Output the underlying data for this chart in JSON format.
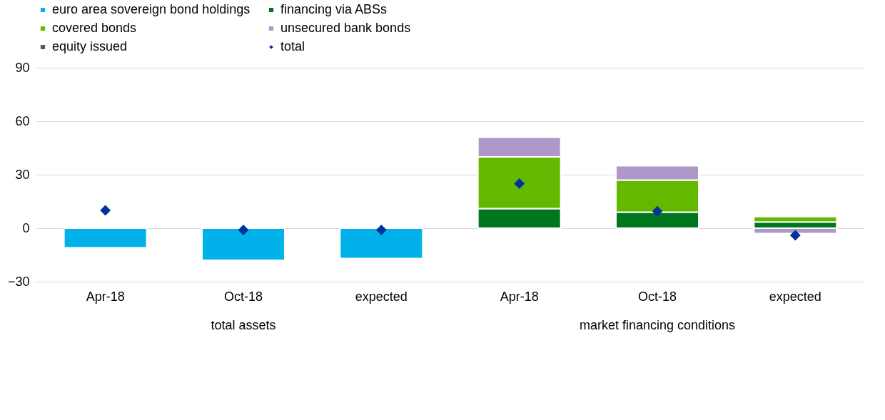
{
  "chart_data": {
    "type": "bar",
    "stacked": true,
    "categories": [
      "Apr-18",
      "Oct-18",
      "expected",
      "Apr-18",
      "Oct-18",
      "expected"
    ],
    "series": [
      {
        "name": "euro area sovereign bond holdings",
        "color": "#00b1ea",
        "values": [
          -11,
          -18,
          -17,
          null,
          null,
          null
        ]
      },
      {
        "name": "financing via ABSs",
        "color": "#00771f",
        "values": [
          null,
          null,
          null,
          11,
          9,
          3.5
        ]
      },
      {
        "name": "covered bonds",
        "color": "#65b800",
        "values": [
          null,
          null,
          null,
          29,
          18,
          3
        ]
      },
      {
        "name": "unsecured bank bonds",
        "color": "#af97c9",
        "values": [
          null,
          null,
          null,
          11,
          8,
          -3
        ]
      },
      {
        "name": "equity issued",
        "color": "#595959",
        "values": [
          null,
          null,
          null,
          null,
          null,
          null
        ]
      },
      {
        "name": "total",
        "type": "scatter",
        "color": "#003399",
        "marker": "diamond",
        "values": [
          10,
          -1,
          -1,
          25,
          9.5,
          -4
        ]
      }
    ],
    "annotations": [
      "total assets",
      "market financing conditions"
    ],
    "ylim": [
      -30,
      90
    ],
    "yticks": [
      -30,
      0,
      30,
      60,
      90
    ],
    "grid": "y",
    "legend": "top left"
  }
}
